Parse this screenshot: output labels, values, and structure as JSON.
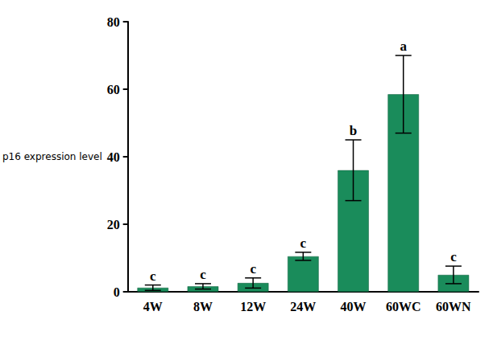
{
  "chart_data": {
    "type": "bar",
    "y_label": "p16 expression level",
    "categories": [
      "4W",
      "8W",
      "12W",
      "24W",
      "40W",
      "60WC",
      "60WN"
    ],
    "values": [
      1.2,
      1.6,
      2.6,
      10.5,
      36,
      58.5,
      5
    ],
    "errors": [
      0.8,
      0.8,
      1.5,
      1.2,
      9,
      11.5,
      2.6
    ],
    "significance": [
      "c",
      "c",
      "c",
      "c",
      "b",
      "a",
      "c"
    ],
    "color": "#1a8c5b",
    "ylim": [
      0,
      80
    ],
    "yticks": [
      0,
      20,
      40,
      60,
      80
    ],
    "grid": false
  }
}
